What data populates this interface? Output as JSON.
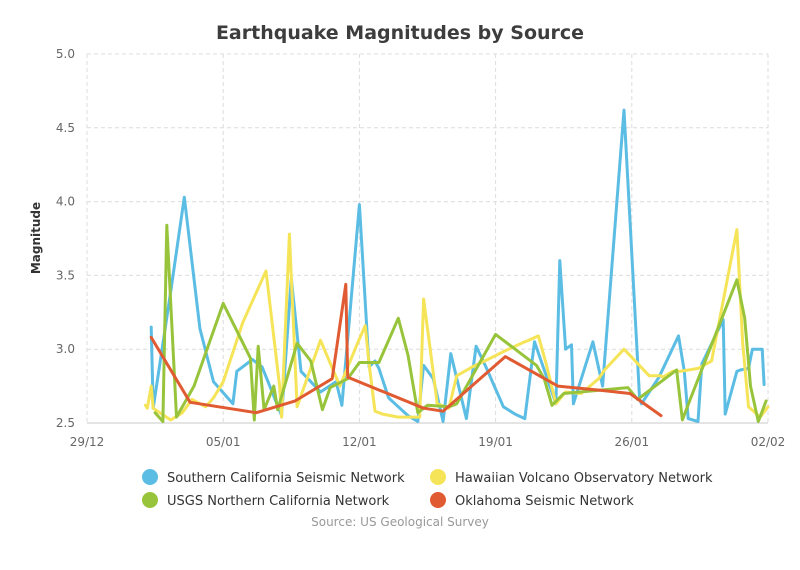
{
  "chart_data": {
    "type": "line",
    "title": "Earthquake Magnitudes by Source",
    "xlabel": "",
    "ylabel": "Magnitude",
    "source_note": "Source: US Geological Survey",
    "xlim": [
      0,
      35
    ],
    "ylim": [
      2.5,
      5.0
    ],
    "x_unit": "days since 29/12",
    "x_ticks": [
      {
        "value": 0,
        "label": "29/12"
      },
      {
        "value": 7,
        "label": "05/01"
      },
      {
        "value": 14,
        "label": "12/01"
      },
      {
        "value": 21,
        "label": "19/01"
      },
      {
        "value": 28,
        "label": "26/01"
      },
      {
        "value": 35,
        "label": "02/02"
      }
    ],
    "y_ticks": [
      {
        "value": 2.5,
        "label": "2.5"
      },
      {
        "value": 3.0,
        "label": "3.0"
      },
      {
        "value": 3.5,
        "label": "3.5"
      },
      {
        "value": 4.0,
        "label": "4.0"
      },
      {
        "value": 4.5,
        "label": "4.5"
      },
      {
        "value": 5.0,
        "label": "5.0"
      }
    ],
    "grid": true,
    "legend_position": "bottom",
    "series": [
      {
        "name": "Southern California Seismic Network",
        "color": "#5bbde4",
        "x": [
          3.3,
          3.4,
          4.3,
          5.0,
          5.8,
          6.5,
          7.5,
          7.7,
          8.5,
          9.0,
          10.0,
          10.5,
          11.0,
          11.5,
          12.0,
          12.8,
          13.1,
          14.0,
          14.5,
          14.8,
          15.0,
          15.5,
          16.0,
          16.5,
          17.0,
          17.3,
          17.8,
          18.3,
          18.7,
          19.5,
          20.0,
          20.5,
          21.4,
          22.0,
          22.5,
          23.0,
          24.1,
          24.3,
          24.6,
          24.9,
          25.0,
          26.0,
          26.5,
          27.6,
          28.3,
          28.4,
          28.5,
          29.4,
          30.4,
          30.7,
          30.9,
          31.4,
          31.6,
          32.7,
          32.8,
          33.4,
          33.6,
          34.0,
          34.2,
          34.7,
          34.8
        ],
        "y": [
          3.15,
          2.6,
          3.39,
          4.03,
          3.14,
          2.78,
          2.63,
          2.85,
          2.93,
          2.88,
          2.55,
          3.48,
          2.85,
          2.78,
          2.71,
          2.78,
          2.62,
          3.98,
          2.88,
          2.92,
          2.87,
          2.67,
          2.61,
          2.55,
          2.51,
          2.89,
          2.8,
          2.51,
          2.97,
          2.53,
          3.02,
          2.88,
          2.61,
          2.56,
          2.53,
          3.05,
          2.63,
          3.6,
          3.0,
          3.03,
          2.63,
          3.05,
          2.75,
          4.62,
          2.92,
          2.66,
          2.63,
          2.81,
          3.09,
          2.85,
          2.53,
          2.51,
          2.9,
          3.2,
          2.56,
          2.85,
          2.86,
          2.87,
          3.0,
          3.0,
          2.76
        ]
      },
      {
        "name": "Hawaiian Volcano Observatory Network",
        "color": "#f6e458",
        "x": [
          3.0,
          3.1,
          3.3,
          3.4,
          4.3,
          4.9,
          5.4,
          6.1,
          6.5,
          7.0,
          8.0,
          9.2,
          9.9,
          10.0,
          10.4,
          10.8,
          12.0,
          13.0,
          13.9,
          14.3,
          14.5,
          14.8,
          15.2,
          16.0,
          17.1,
          17.3,
          17.8,
          18.0,
          18.6,
          19.0,
          19.8,
          20.6,
          21.5,
          22.5,
          22.7,
          23.2,
          23.6,
          24.1,
          24.6,
          25.4,
          26.3,
          26.6,
          27.6,
          28.9,
          29.5,
          29.6,
          30.1,
          30.5,
          31.4,
          32.1,
          33.4,
          33.7,
          34.0,
          34.6,
          35.0
        ],
        "y": [
          2.62,
          2.6,
          2.75,
          2.6,
          2.52,
          2.57,
          2.66,
          2.61,
          2.67,
          2.78,
          3.18,
          3.53,
          2.75,
          2.54,
          3.78,
          2.61,
          3.06,
          2.75,
          3.04,
          3.16,
          2.9,
          2.58,
          2.56,
          2.54,
          2.54,
          3.34,
          2.84,
          2.63,
          2.6,
          2.82,
          2.88,
          2.93,
          2.99,
          3.05,
          3.06,
          3.09,
          2.9,
          2.63,
          2.71,
          2.7,
          2.8,
          2.86,
          3.0,
          2.82,
          2.82,
          2.81,
          2.85,
          2.85,
          2.87,
          2.92,
          3.81,
          3.04,
          2.61,
          2.54,
          2.61
        ]
      },
      {
        "name": "USGS Northern California Network",
        "color": "#98c43c",
        "x": [
          3.5,
          3.9,
          4.1,
          4.6,
          5.5,
          7.0,
          8.4,
          8.6,
          8.8,
          9.1,
          9.6,
          9.8,
          10.8,
          11.5,
          12.1,
          12.5,
          13.4,
          14.0,
          15.0,
          16.0,
          16.5,
          17.0,
          17.5,
          18.6,
          19.0,
          21.0,
          23.1,
          23.5,
          23.9,
          24.5,
          27.8,
          28.3,
          28.7,
          30.3,
          30.6,
          31.0,
          33.4,
          33.8,
          34.1,
          34.5,
          34.9
        ],
        "y": [
          2.57,
          2.51,
          3.84,
          2.54,
          2.75,
          3.31,
          2.94,
          2.52,
          3.02,
          2.59,
          2.75,
          2.59,
          3.04,
          2.92,
          2.59,
          2.74,
          2.8,
          2.91,
          2.91,
          3.21,
          2.96,
          2.57,
          2.62,
          2.61,
          2.63,
          3.1,
          2.89,
          2.8,
          2.62,
          2.7,
          2.74,
          2.66,
          2.7,
          2.86,
          2.52,
          2.66,
          3.47,
          3.21,
          2.75,
          2.51,
          2.65
        ]
      },
      {
        "name": "Oklahoma Seismic Network",
        "color": "#e05a32",
        "x": [
          3.3,
          5.3,
          8.7,
          10.7,
          12.6,
          13.3,
          13.4,
          17.3,
          18.3,
          21.5,
          24.2,
          26.5,
          27.9,
          29.5
        ],
        "y": [
          3.08,
          2.64,
          2.57,
          2.65,
          2.8,
          3.44,
          2.81,
          2.6,
          2.58,
          2.95,
          2.75,
          2.72,
          2.7,
          2.55
        ]
      }
    ]
  }
}
